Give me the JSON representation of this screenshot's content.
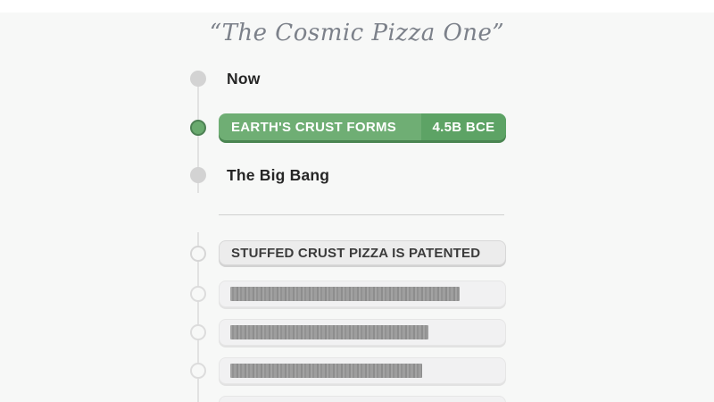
{
  "header": {
    "deck_title": "“The Cosmic Pizza One”"
  },
  "timeline": {
    "now_label": "Now",
    "placed_card": {
      "label": "EARTH'S CRUST FORMS",
      "date": "4.5B BCE"
    },
    "origin_label": "The Big Bang"
  },
  "deck": {
    "next_card_label": "STUFFED CRUST PIZZA IS PATENTED",
    "hidden_card_count": 3,
    "partial_card_visible": true
  },
  "colors": {
    "page_bg": "#f7f8f7",
    "accent_green": "#6fae74",
    "accent_green_dark": "#5da365",
    "accent_green_shadow": "#4a8551",
    "card_gray": "#ececec",
    "redacted_bar": "#999999",
    "title_gray": "#7c818a"
  }
}
